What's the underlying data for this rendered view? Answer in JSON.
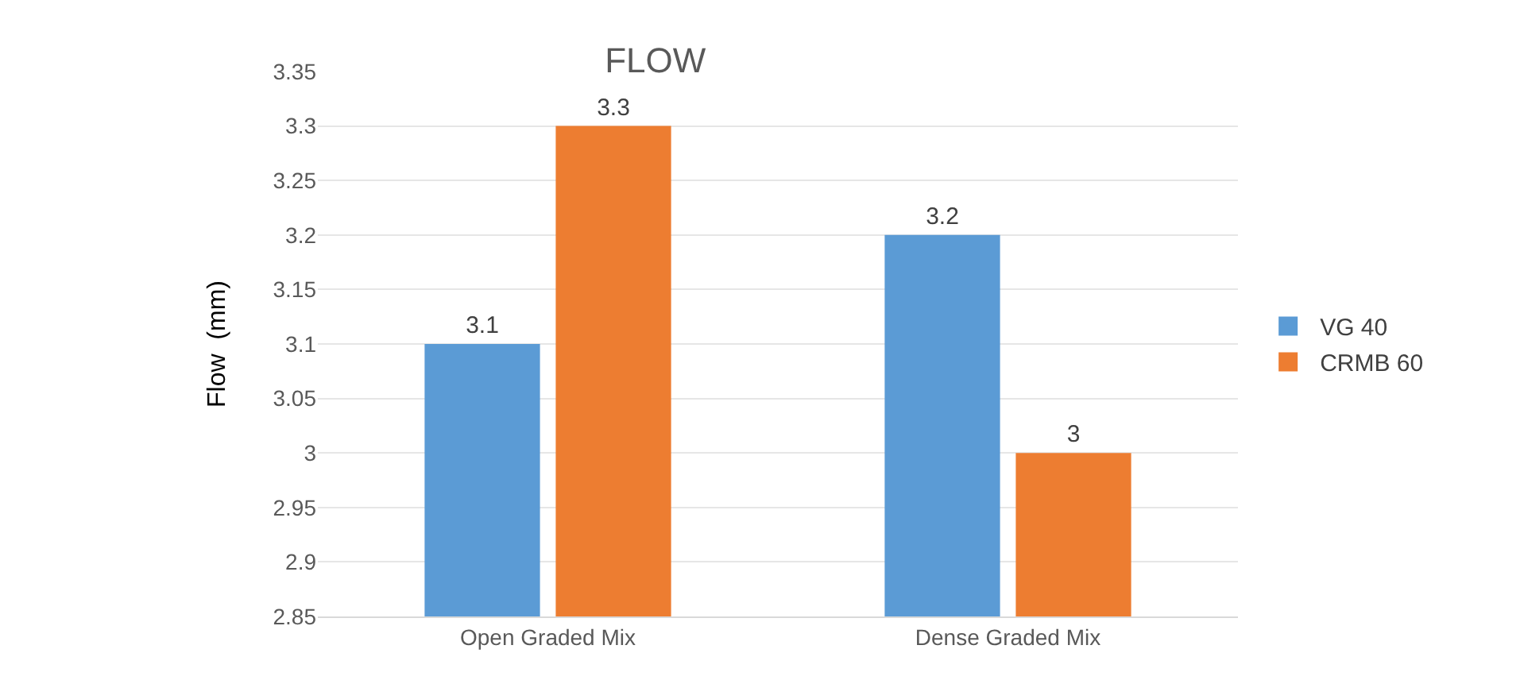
{
  "chart_data": {
    "type": "bar",
    "title": "FLOW",
    "ylabel": "Flow  (mm)",
    "categories": [
      "Open Graded Mix",
      "Dense Graded Mix"
    ],
    "series": [
      {
        "name": "VG 40",
        "color": "#5b9bd5",
        "values": [
          3.1,
          3.2
        ]
      },
      {
        "name": "CRMB 60",
        "color": "#ed7d31",
        "values": [
          3.3,
          3
        ]
      }
    ],
    "ylim": [
      2.85,
      3.35
    ],
    "yticks": [
      2.85,
      2.9,
      2.95,
      3,
      3.05,
      3.1,
      3.15,
      3.2,
      3.25,
      3.3,
      3.35
    ],
    "grid": "y",
    "legend": "right",
    "data_labels": true
  }
}
